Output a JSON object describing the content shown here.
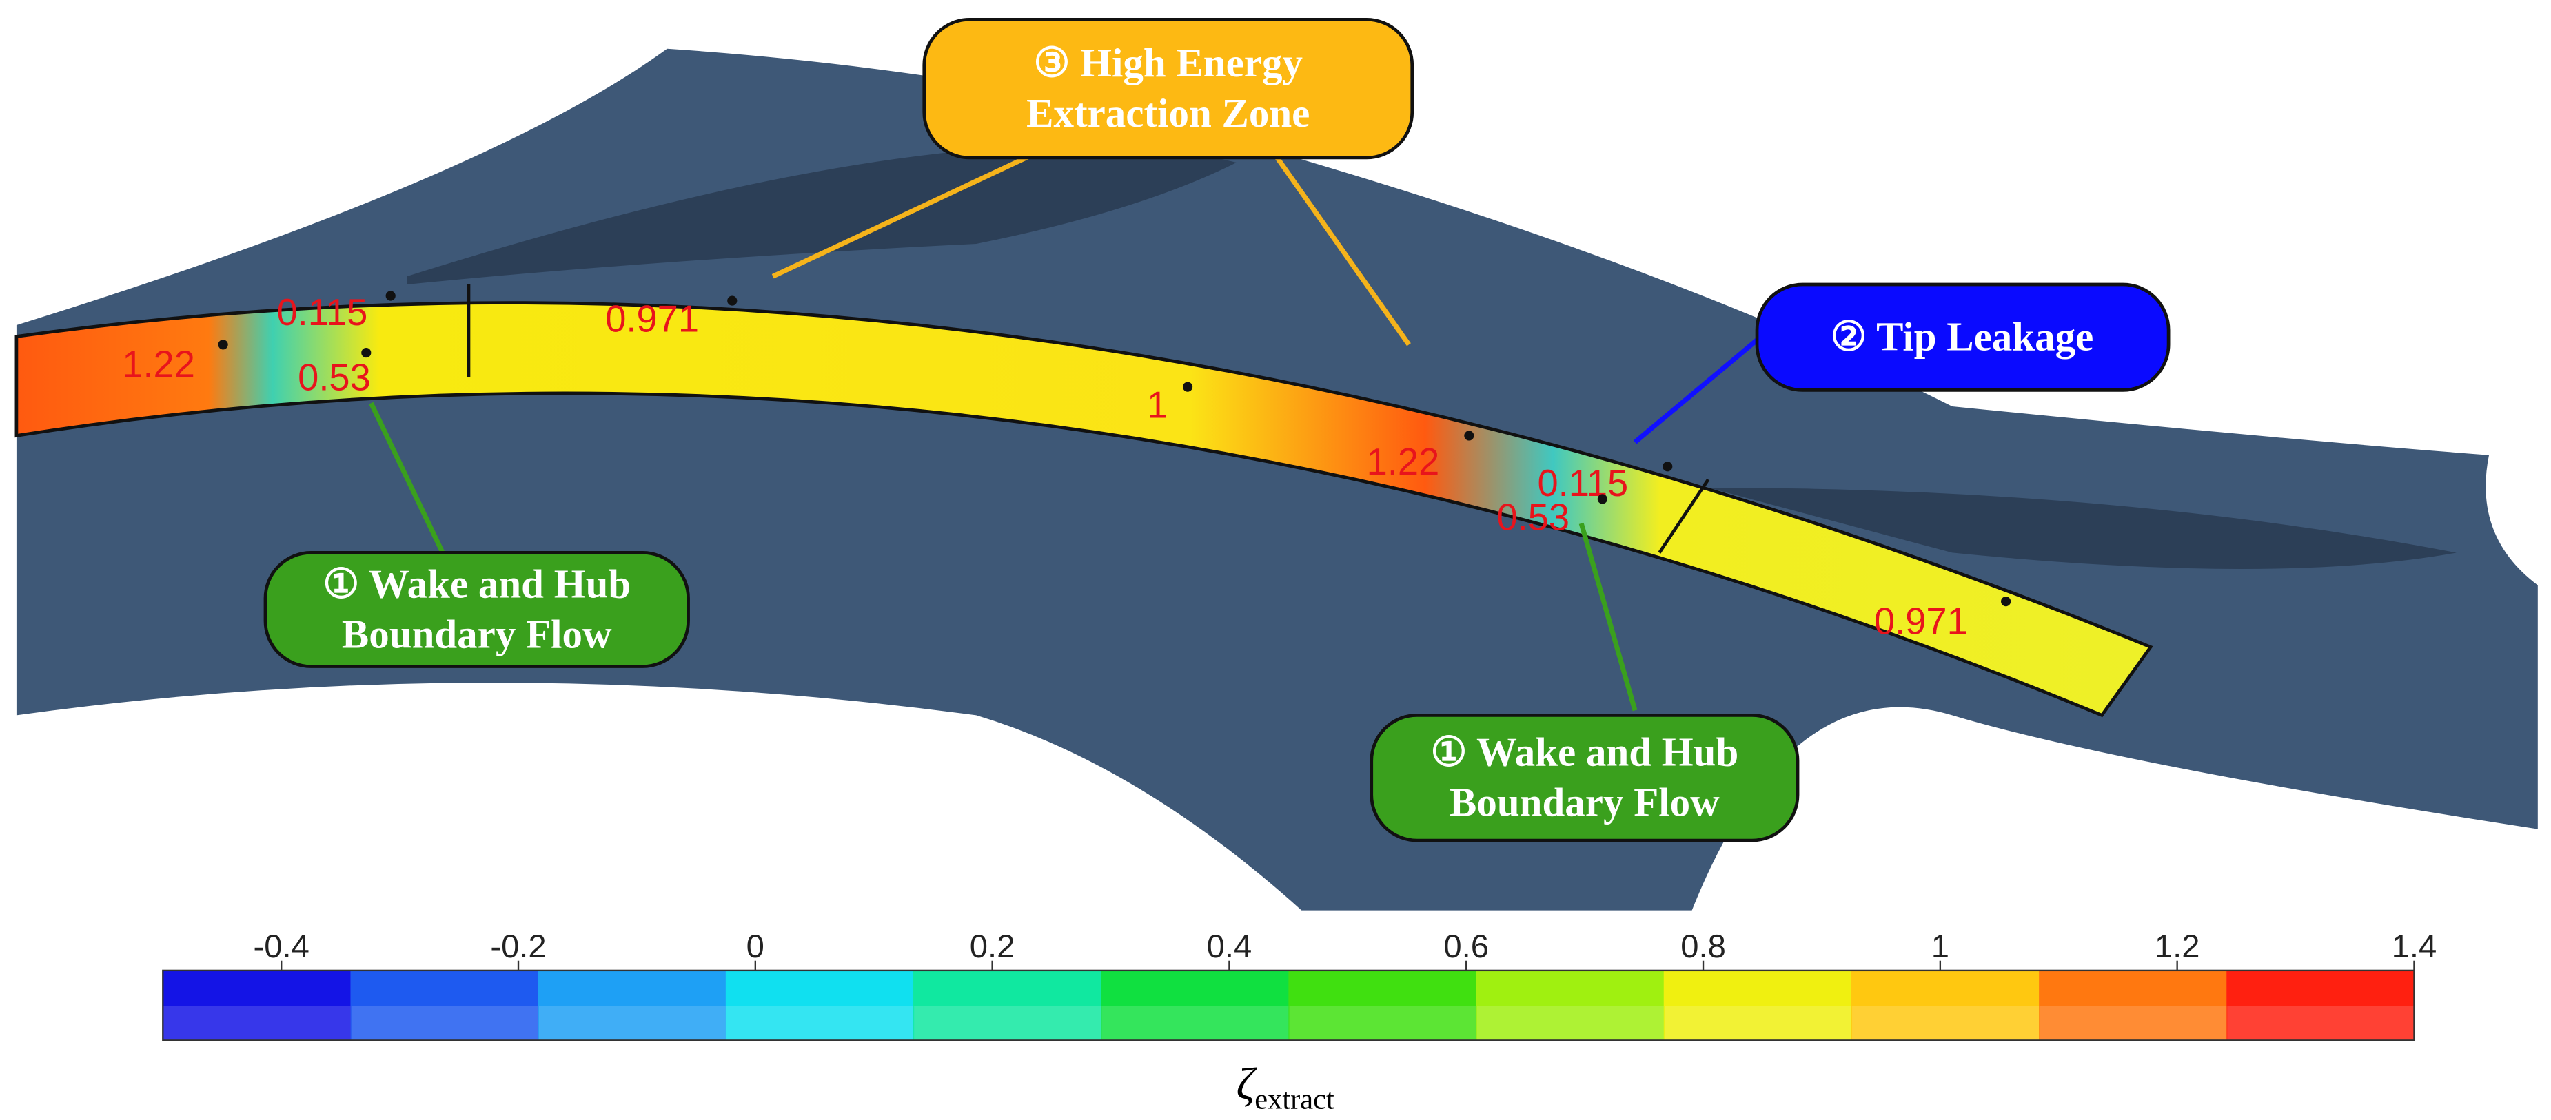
{
  "callouts": [
    {
      "lines": [
        "③ High Energy",
        "Extraction Zone"
      ]
    },
    {
      "lines": [
        "② Tip Leakage"
      ]
    },
    {
      "lines": [
        "① Wake and Hub",
        "Boundary Flow"
      ]
    },
    {
      "lines": [
        "① Wake and Hub",
        "Boundary Flow"
      ]
    }
  ],
  "contour_labels": [
    1.22,
    0.115,
    0.53,
    0.971,
    1,
    1.22,
    0.115,
    0.53,
    0.971
  ],
  "colorbar": {
    "symbol": "ζ",
    "subscript": "extract",
    "lim": [
      -0.5,
      1.4
    ],
    "ticks": [
      -0.4,
      -0.2,
      0,
      0.2,
      0.4,
      0.6,
      0.8,
      1,
      1.2,
      1.4
    ]
  }
}
